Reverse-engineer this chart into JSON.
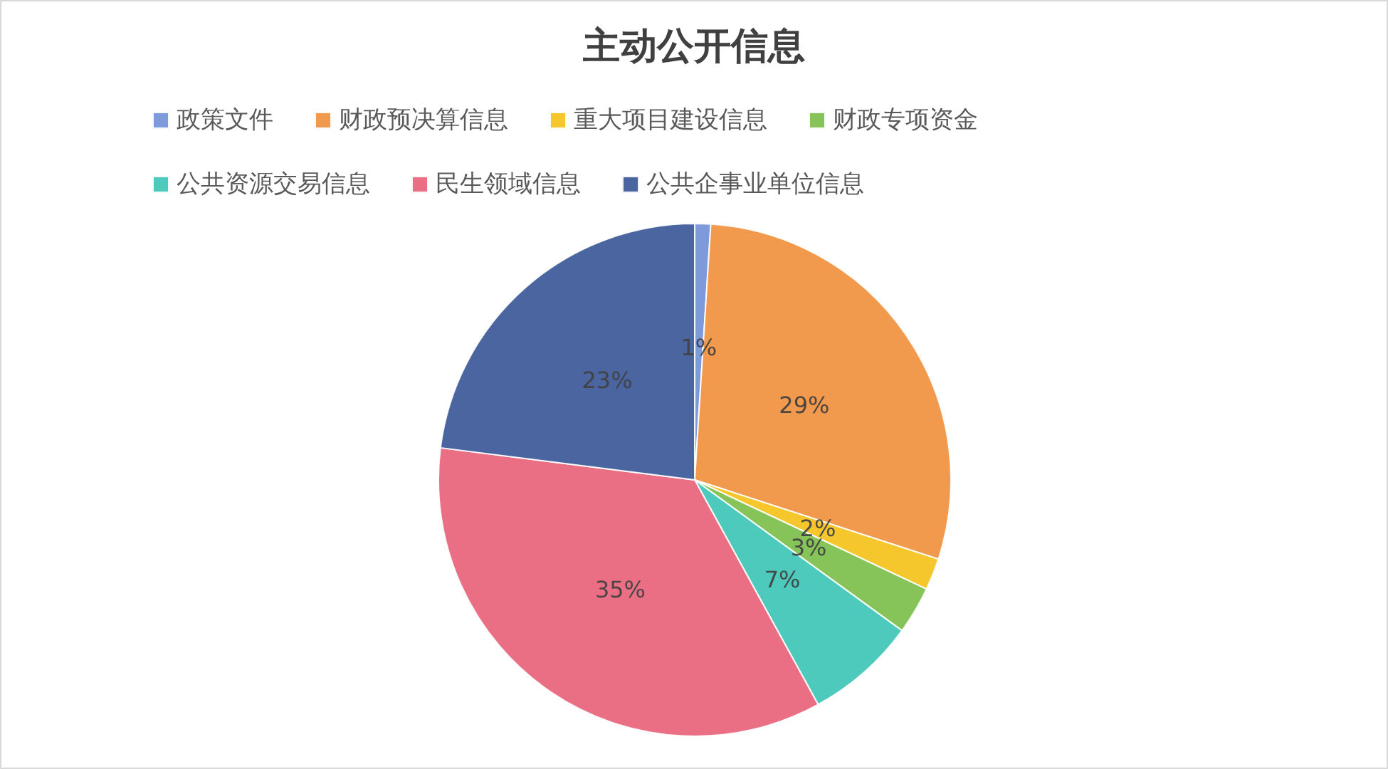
{
  "chart_data": {
    "type": "pie",
    "title": "主动公开信息",
    "categories": [
      "政策文件",
      "财政预决算信息",
      "重大项目建设信息",
      "财政专项资金",
      "公共资源交易信息",
      "民生领域信息",
      "公共企事业单位信息"
    ],
    "values": [
      1,
      29,
      2,
      3,
      7,
      35,
      23
    ],
    "value_labels": [
      "1%",
      "29%",
      "2%",
      "3%",
      "7%",
      "35%",
      "23%"
    ],
    "colors": [
      "#7391d8",
      "#f0903e",
      "#f5c21a",
      "#7cbf4c",
      "#3ec6b6",
      "#e8637b",
      "#3b5898"
    ],
    "legend": "top"
  }
}
